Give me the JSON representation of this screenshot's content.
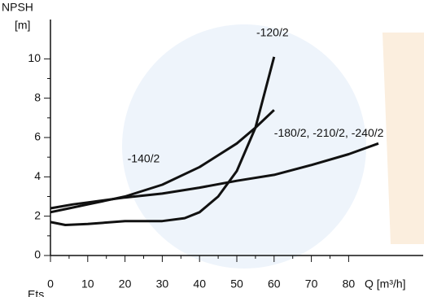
{
  "chart_data": {
    "type": "line",
    "y_label": "NPSH",
    "y_unit": "[m]",
    "x_label": "Q [m³/h]",
    "footer": "Ets",
    "xlim": [
      0,
      100
    ],
    "xticks": [
      0,
      10,
      20,
      30,
      40,
      50,
      60,
      70,
      80
    ],
    "ylim": [
      0,
      12
    ],
    "yticks": [
      0,
      2,
      4,
      6,
      8,
      10
    ],
    "series": [
      {
        "name": "-120/2",
        "color": "#111111",
        "x": [
          0,
          4,
          10,
          20,
          30,
          36,
          40,
          45,
          50,
          55,
          60
        ],
        "values": [
          1.7,
          1.55,
          1.6,
          1.75,
          1.75,
          1.9,
          2.2,
          3.0,
          4.3,
          6.5,
          10.1
        ]
      },
      {
        "name": "-140/2",
        "color": "#111111",
        "x": [
          0,
          5,
          10,
          20,
          30,
          40,
          50,
          55,
          60
        ],
        "values": [
          2.2,
          2.4,
          2.6,
          3.0,
          3.6,
          4.5,
          5.7,
          6.5,
          7.4
        ]
      },
      {
        "name": "-180/2, -210/2, -240/2",
        "color": "#111111",
        "x": [
          0,
          6,
          10,
          20,
          30,
          40,
          50,
          60,
          70,
          80,
          88
        ],
        "values": [
          2.4,
          2.6,
          2.7,
          2.95,
          3.15,
          3.45,
          3.8,
          4.1,
          4.6,
          5.15,
          5.7
        ]
      }
    ]
  }
}
